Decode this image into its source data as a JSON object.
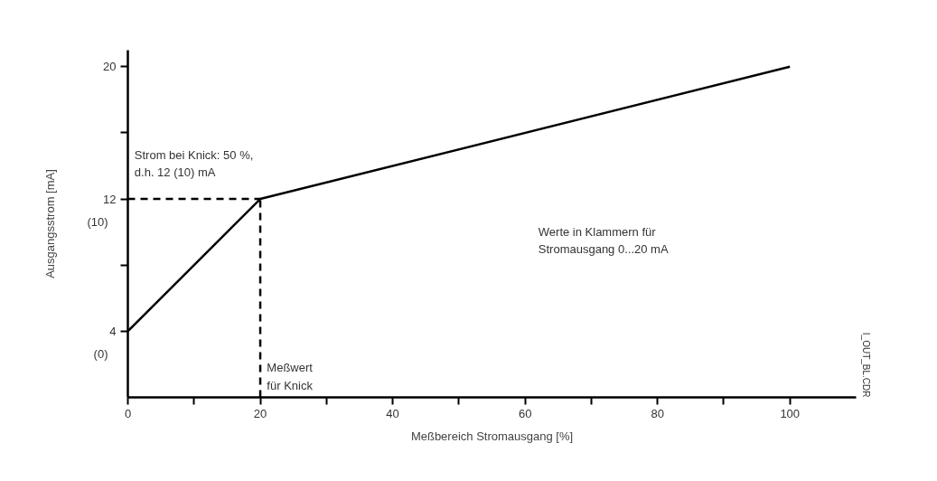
{
  "chart_data": {
    "type": "line",
    "xlabel": "Meßbereich Stromausgang [%]",
    "ylabel": "Ausgangsstrom [mA]",
    "xlim": [
      0,
      110
    ],
    "ylim": [
      0,
      21
    ],
    "xticks": [
      0,
      {
        "value": 10,
        "label": null
      },
      20,
      {
        "value": 30,
        "label": null
      },
      40,
      {
        "value": 50,
        "label": null
      },
      60,
      {
        "value": 70,
        "label": null
      },
      80,
      {
        "value": 90,
        "label": null
      },
      100
    ],
    "yticks": [
      4,
      {
        "value": 8,
        "label": null
      },
      12,
      {
        "value": 16,
        "label": null
      },
      20
    ],
    "grid": false,
    "marker": "none",
    "series": [
      {
        "color": "#000000",
        "x": [
          0,
          20,
          100
        ],
        "values": [
          4,
          12,
          20
        ],
        "line_style": "solid"
      },
      {
        "color": "#000000",
        "x": [
          0,
          20
        ],
        "values": [
          12,
          12
        ],
        "line_style": "dashed"
      },
      {
        "color": "#000000",
        "x": [
          20,
          20
        ],
        "values": [
          0,
          12
        ],
        "line_style": "dashed"
      }
    ],
    "annotations": [
      "Strom bei Knick: 50 %,\nd.h. 12 (10) mA",
      "Meßwert\nfür Knick",
      "Werte in Klammern für\nStromausgang 0...20 mA",
      "I_OUT_BL.CDR",
      "(0)",
      "(10)"
    ]
  }
}
